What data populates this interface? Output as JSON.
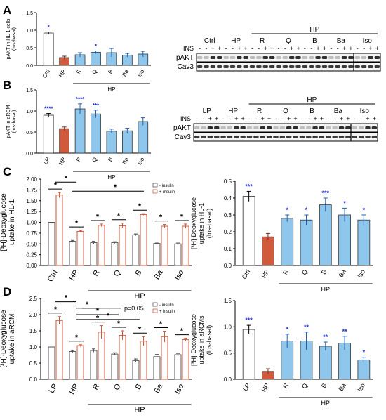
{
  "panels": {
    "A": "A",
    "B": "B",
    "C": "C",
    "D": "D"
  },
  "colors": {
    "ctrl": "#ffffff",
    "hp": "#d05a3c",
    "treat": "#8ec6ec",
    "noins": "#ffffff",
    "ins_edge": "#d05a3c",
    "star_blue": "#1f2fd0",
    "star_black": "#000000"
  },
  "blot_A": {
    "group_label": "HP",
    "lanes": [
      "Ctrl",
      "HP",
      "R",
      "Q",
      "B",
      "Ba",
      "Iso"
    ],
    "ins_label": "INS",
    "ins_signs": [
      "-",
      "-",
      "+",
      "+",
      "-",
      "-",
      "+",
      "+",
      "-",
      "-",
      "+",
      "+",
      "-",
      "-",
      "+",
      "+",
      "-",
      "-",
      "+",
      "+",
      "-",
      "-",
      "+",
      "+",
      "-",
      "-",
      "+",
      "+"
    ],
    "rows": [
      "pAKT",
      "Cav3"
    ]
  },
  "blot_B": {
    "group_label": "HP",
    "lanes": [
      "LP",
      "HP",
      "R",
      "Q",
      "B",
      "Ba",
      "Iso"
    ],
    "ins_label": "INS",
    "ins_signs": [
      "-",
      "-",
      "+",
      "+",
      "-",
      "-",
      "+",
      "+",
      "-",
      "-",
      "+",
      "+",
      "-",
      "-",
      "+",
      "+",
      "-",
      "-",
      "+",
      "+",
      "-",
      "-",
      "+",
      "+",
      "-",
      "-",
      "+",
      "+"
    ],
    "rows": [
      "pAKT",
      "Cav3"
    ]
  },
  "legend": {
    "minus": "- insulin",
    "plus": "+ insulin"
  },
  "chart_data": [
    {
      "id": "A-left",
      "type": "bar",
      "ylabel_line1": "pAKT in HL-1 cells",
      "ylabel_line2": "(Ins-basal)",
      "ylim": [
        0,
        1.5
      ],
      "yticks": [
        "0.0",
        "0.5",
        "1.0",
        "1.5"
      ],
      "categories": [
        "Ctrl",
        "HP",
        "R",
        "Q",
        "B",
        "Ba",
        "Iso"
      ],
      "values": [
        0.92,
        0.22,
        0.3,
        0.37,
        0.36,
        0.29,
        0.32
      ],
      "errors": [
        0.03,
        0.04,
        0.06,
        0.04,
        0.12,
        0.05,
        0.08
      ],
      "annotations": [
        "*",
        "",
        "",
        "*",
        "",
        "",
        ""
      ],
      "group_label": "HP"
    },
    {
      "id": "B-left",
      "type": "bar",
      "ylabel_line1": "pAKT in aRCM",
      "ylabel_line2": "(Ins-basal)",
      "ylim": [
        0,
        1.5
      ],
      "yticks": [
        "0.0",
        "0.5",
        "1.0",
        "1.5"
      ],
      "categories": [
        "LP",
        "HP",
        "R",
        "Q",
        "B",
        "Ba",
        "Iso"
      ],
      "values": [
        0.9,
        0.58,
        1.05,
        0.93,
        0.52,
        0.53,
        0.75
      ],
      "errors": [
        0.04,
        0.04,
        0.12,
        0.09,
        0.05,
        0.06,
        0.09
      ],
      "annotations": [
        "****",
        "",
        "****",
        "***",
        "",
        "",
        ""
      ],
      "group_label": "HP"
    },
    {
      "id": "C-left",
      "type": "bar",
      "ylabel_line1": "[³H]-Deoxyglucose",
      "ylabel_line2": "uptake in HL-1",
      "ylim": [
        0,
        2.0
      ],
      "yticks": [
        "0.00",
        "0.25",
        "0.50",
        "0.75",
        "1.00",
        "1.25",
        "1.50",
        "1.75",
        "2.00"
      ],
      "categories": [
        "Ctrl",
        "HP",
        "R",
        "Q",
        "B",
        "Ba",
        "Iso"
      ],
      "series": [
        {
          "name": "- insulin",
          "values": [
            1.0,
            0.56,
            0.53,
            0.53,
            0.71,
            0.51,
            0.5
          ],
          "errors": [
            0.0,
            0.02,
            0.03,
            0.02,
            0.02,
            0.01,
            0.02
          ]
        },
        {
          "name": "+ insulin",
          "values": [
            1.63,
            0.79,
            0.93,
            0.92,
            1.18,
            0.91,
            0.91
          ],
          "errors": [
            0.06,
            0.02,
            0.03,
            0.06,
            0.02,
            0.04,
            0.05
          ]
        }
      ],
      "annotations": [
        "*",
        "*",
        "*",
        "*",
        "*",
        "*",
        "*"
      ],
      "group_label": "HP"
    },
    {
      "id": "C-right",
      "type": "bar",
      "ylabel_line1": "[³H]-Deoxyglucose",
      "ylabel_line2": "uptake in HL-1",
      "ylabel_line3": "(Ins-basal)",
      "ylim": [
        0,
        0.5
      ],
      "yticks": [
        "0.0",
        "0.1",
        "0.2",
        "0.3",
        "0.4",
        "0.5"
      ],
      "categories": [
        "Ctrl",
        "HP",
        "R",
        "Q",
        "B",
        "Ba",
        "Iso"
      ],
      "values": [
        0.41,
        0.17,
        0.28,
        0.27,
        0.36,
        0.3,
        0.27
      ],
      "errors": [
        0.03,
        0.02,
        0.02,
        0.03,
        0.04,
        0.04,
        0.03
      ],
      "annotations": [
        "***",
        "",
        "*",
        "*",
        "***",
        "*",
        "*"
      ],
      "group_label": "HP"
    },
    {
      "id": "D-left",
      "type": "bar",
      "ylabel_line1": "[³H]-Deoxyglucose",
      "ylabel_line2": "uptake in aRCM",
      "ylim": [
        0,
        2.5
      ],
      "yticks": [
        "0.0",
        "0.5",
        "1.0",
        "1.5",
        "2.0",
        "2.5"
      ],
      "categories": [
        "LP",
        "HP",
        "R",
        "Q",
        "B",
        "Ba",
        "Iso"
      ],
      "series": [
        {
          "name": "- insulin",
          "values": [
            1.0,
            0.86,
            0.89,
            0.78,
            0.58,
            0.7,
            0.76
          ],
          "errors": [
            0.0,
            0.03,
            0.05,
            0.04,
            0.05,
            0.07,
            0.04
          ]
        },
        {
          "name": "+ insulin",
          "values": [
            1.82,
            1.04,
            1.46,
            1.36,
            1.18,
            1.32,
            1.23
          ],
          "errors": [
            0.12,
            0.03,
            0.2,
            0.14,
            0.14,
            0.17,
            0.04
          ]
        }
      ],
      "annotations": [
        "*",
        "*",
        "*",
        "*",
        "*",
        "*",
        "*"
      ],
      "pvalue_label": "p=0.05",
      "group_label": "HP"
    },
    {
      "id": "D-right",
      "type": "bar",
      "ylabel_line1": "[³H]-Deoxyglucose",
      "ylabel_line2": "uptake in aRCMs",
      "ylabel_line3": "(Ins-basal)",
      "ylim": [
        0,
        1.5
      ],
      "yticks": [
        "0.0",
        "0.5",
        "1.0",
        "1.5"
      ],
      "categories": [
        "LP",
        "HP",
        "R",
        "Q",
        "B",
        "Ba",
        "Iso"
      ],
      "values": [
        0.95,
        0.15,
        0.73,
        0.73,
        0.63,
        0.69,
        0.37
      ],
      "errors": [
        0.08,
        0.05,
        0.13,
        0.17,
        0.08,
        0.13,
        0.05
      ],
      "annotations": [
        "***",
        "",
        "*",
        "**",
        "**",
        "**",
        "*"
      ],
      "group_label": "HP"
    }
  ]
}
